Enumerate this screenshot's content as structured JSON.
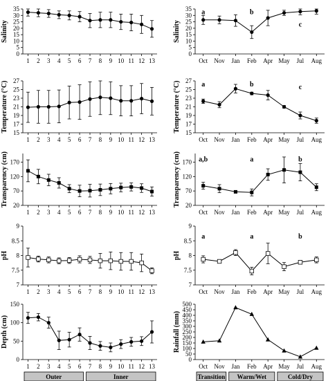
{
  "chart_data": [
    {
      "type": "line",
      "marker": "circle",
      "ylabel": "Salinity",
      "x": [
        "1",
        "2",
        "3",
        "4",
        "5",
        "6",
        "7",
        "8",
        "9",
        "10",
        "11",
        "12",
        "13"
      ],
      "values": [
        32.5,
        32.0,
        31.5,
        30.5,
        30.0,
        29.0,
        26.0,
        26.5,
        26.5,
        25.0,
        24.5,
        23.0,
        19.5
      ],
      "errors": [
        3,
        3,
        3,
        3,
        3.5,
        4,
        5.5,
        6,
        6,
        6,
        6.5,
        7,
        6.5
      ],
      "ylim": [
        0,
        35
      ],
      "yticks": [
        "0",
        "5",
        "10",
        "15",
        "20",
        "25",
        "30",
        "35"
      ],
      "letters": []
    },
    {
      "type": "line",
      "marker": "circle",
      "ylabel": "Salinity",
      "x": [
        "Oct",
        "Nov",
        "Jan",
        "Feb",
        "Apr",
        "May",
        "Jul",
        "Aug"
      ],
      "values": [
        26.5,
        26.5,
        26.0,
        17.0,
        28.0,
        32.0,
        33.0,
        33.5
      ],
      "errors": [
        3.5,
        3,
        4.5,
        5,
        6,
        2,
        2.5,
        2.5
      ],
      "ylim": [
        0,
        35
      ],
      "yticks": [
        "0",
        "5",
        "10",
        "15",
        "20",
        "25",
        "30",
        "35"
      ],
      "letters": [
        {
          "text": "a",
          "x": "Oct",
          "y": 32.5
        },
        {
          "text": "b",
          "x": "Feb",
          "y": 32.5
        },
        {
          "text": "c",
          "x": "Jul",
          "y": 23
        }
      ]
    },
    {
      "type": "line",
      "marker": "circle",
      "ylabel": "Temperature (°C)",
      "x": [
        "1",
        "2",
        "3",
        "4",
        "5",
        "6",
        "7",
        "8",
        "9",
        "10",
        "11",
        "12",
        "13"
      ],
      "values": [
        20.9,
        21.0,
        21.0,
        21.1,
        22.0,
        22.1,
        22.8,
        23.2,
        23.0,
        22.4,
        22.4,
        22.9,
        22.3
      ],
      "errors": [
        3.5,
        3.8,
        3.8,
        3.8,
        3.8,
        4,
        4,
        4,
        3.8,
        3.5,
        3.5,
        3.5,
        3.2
      ],
      "ylim": [
        15,
        27
      ],
      "yticks": [
        "15",
        "17",
        "19",
        "21",
        "23",
        "25",
        "27"
      ],
      "letters": []
    },
    {
      "type": "line",
      "marker": "circle",
      "ylabel": "Temperature (°C)",
      "x": [
        "Oct",
        "Nov",
        "Jan",
        "Feb",
        "Apr",
        "May",
        "Jul",
        "Aug"
      ],
      "values": [
        22.3,
        21.5,
        25.2,
        24.1,
        23.7,
        21.0,
        19.0,
        17.8
      ],
      "errors": [
        0.5,
        0.7,
        1.0,
        0.3,
        1.1,
        0.3,
        0.8,
        0.6
      ],
      "ylim": [
        15,
        27
      ],
      "yticks": [
        "15",
        "17",
        "19",
        "21",
        "23",
        "25",
        "27"
      ],
      "letters": [
        {
          "text": "a",
          "x": "Oct",
          "y": 26.2
        },
        {
          "text": "b",
          "x": "Feb",
          "y": 26.2
        },
        {
          "text": "c",
          "x": "Jul",
          "y": 25.6
        }
      ]
    },
    {
      "type": "line",
      "marker": "square",
      "ylabel": "Transparency (cm)",
      "x": [
        "1",
        "2",
        "3",
        "4",
        "5",
        "6",
        "7",
        "8",
        "9",
        "10",
        "11",
        "12",
        "13"
      ],
      "values": [
        140,
        120,
        108,
        98,
        78,
        70,
        71,
        74,
        78,
        82,
        84,
        80,
        68
      ],
      "errors": [
        38,
        25,
        20,
        18,
        14,
        20,
        22,
        20,
        18,
        15,
        14,
        15,
        16
      ],
      "ylim": [
        20,
        200
      ],
      "yticks": [
        "20",
        "70",
        "120",
        "170"
      ],
      "letters": []
    },
    {
      "type": "line",
      "marker": "square",
      "ylabel": "Transparency (cm)",
      "x": [
        "Oct",
        "Nov",
        "Jan",
        "Feb",
        "Apr",
        "May",
        "Jul",
        "Aug"
      ],
      "values": [
        88,
        78,
        67,
        65,
        127,
        143,
        135,
        83
      ],
      "errors": [
        12,
        14,
        4,
        12,
        20,
        45,
        30,
        12
      ],
      "ylim": [
        20,
        200
      ],
      "yticks": [
        "20",
        "70",
        "120",
        "170"
      ],
      "letters": [
        {
          "text": "a,b",
          "x": "Oct",
          "y": 180
        },
        {
          "text": "a",
          "x": "Feb",
          "y": 180
        },
        {
          "text": "b",
          "x": "Jul",
          "y": 180
        }
      ]
    },
    {
      "type": "line",
      "marker": "open-square",
      "ylabel": "pH",
      "x": [
        "1",
        "2",
        "3",
        "4",
        "5",
        "6",
        "7",
        "8",
        "9",
        "10",
        "11",
        "12",
        "13"
      ],
      "values": [
        7.93,
        7.88,
        7.85,
        7.82,
        7.83,
        7.87,
        7.85,
        7.82,
        7.82,
        7.8,
        7.8,
        7.75,
        7.48
      ],
      "errors": [
        0.32,
        0.1,
        0.1,
        0.1,
        0.1,
        0.12,
        0.12,
        0.25,
        0.3,
        0.3,
        0.3,
        0.3,
        0.1
      ],
      "ylim": [
        7,
        9
      ],
      "yticks": [
        "7",
        "7.5",
        "8",
        "8.5",
        "9"
      ],
      "letters": []
    },
    {
      "type": "line",
      "marker": "open-square",
      "ylabel": "pH",
      "x": [
        "Oct",
        "Nov",
        "Jan",
        "Feb",
        "Apr",
        "May",
        "Jul",
        "Aug"
      ],
      "values": [
        7.87,
        7.8,
        8.1,
        7.47,
        8.07,
        7.62,
        7.77,
        7.85
      ],
      "errors": [
        0.12,
        0.06,
        0.1,
        0.13,
        0.35,
        0.14,
        0.06,
        0.1
      ],
      "ylim": [
        7,
        9
      ],
      "yticks": [
        "7",
        "7.5",
        "8",
        "8.5",
        "9"
      ],
      "letters": [
        {
          "text": "a",
          "x": "Oct",
          "y": 8.65
        },
        {
          "text": "a",
          "x": "Feb",
          "y": 8.65
        },
        {
          "text": "b",
          "x": "Jul",
          "y": 8.65
        }
      ]
    },
    {
      "type": "line",
      "marker": "circle",
      "ylabel": "Depth (cm)",
      "x": [
        "1",
        "2",
        "3",
        "4",
        "5",
        "6",
        "7",
        "8",
        "9",
        "10",
        "11",
        "12",
        "13"
      ],
      "values": [
        113,
        115,
        100,
        52,
        54,
        68,
        45,
        37,
        33,
        42,
        48,
        50,
        75
      ],
      "errors": [
        15,
        10,
        15,
        25,
        20,
        18,
        18,
        12,
        12,
        12,
        12,
        12,
        30
      ],
      "ylim": [
        0,
        150
      ],
      "yticks": [
        "0",
        "50",
        "100",
        "150"
      ],
      "letters": []
    },
    {
      "type": "line",
      "marker": "triangle",
      "ylabel": "Rainfall (mm)",
      "x": [
        "Oct",
        "Nov",
        "Jan",
        "Feb",
        "Apr",
        "May",
        "Jul",
        "Aug"
      ],
      "values": [
        160,
        170,
        470,
        410,
        180,
        80,
        25,
        105
      ],
      "errors": [
        0,
        0,
        0,
        0,
        0,
        0,
        0,
        0
      ],
      "ylim": [
        0,
        500
      ],
      "yticks": [
        "0",
        "50",
        "100",
        "150",
        "200",
        "250",
        "300",
        "350",
        "400",
        "450",
        "500"
      ],
      "letters": []
    }
  ],
  "groups_left": [
    {
      "label": "Outer",
      "from": "1",
      "to": "6"
    },
    {
      "label": "Inner",
      "from": "7",
      "to": "13"
    }
  ],
  "groups_right": [
    {
      "label": "Transition",
      "from": "Oct",
      "to": "Nov"
    },
    {
      "label": "Warm/Wet",
      "from": "Jan",
      "to": "Apr"
    },
    {
      "label": "Cold/Dry",
      "from": "May",
      "to": "Aug"
    }
  ]
}
